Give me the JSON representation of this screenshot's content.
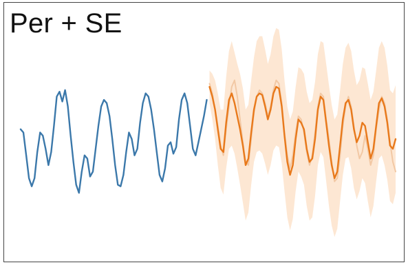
{
  "chart_data": {
    "type": "line",
    "title": "Per + SE",
    "xlabel": "",
    "ylabel": "",
    "grid": false,
    "legend": "none",
    "x_history": [
      0,
      1,
      2,
      3,
      4,
      5,
      6,
      7,
      8,
      9,
      10,
      11,
      12,
      13,
      14,
      15,
      16,
      17,
      18,
      19,
      20,
      21,
      22,
      23,
      24,
      25,
      26,
      27,
      28,
      29,
      30,
      31,
      32,
      33,
      34,
      35,
      36,
      37,
      38,
      39,
      40,
      41,
      42,
      43,
      44,
      45,
      46,
      47,
      48,
      49,
      50,
      51,
      52,
      53,
      54,
      55,
      56,
      57,
      58,
      59,
      60,
      61,
      62,
      63,
      64,
      65,
      66,
      67
    ],
    "x_forecast": [
      68,
      69,
      70,
      71,
      72,
      73,
      74,
      75,
      76,
      77,
      78,
      79,
      80,
      81,
      82,
      83,
      84,
      85,
      86,
      87,
      88,
      89,
      90,
      91,
      92,
      93,
      94,
      95,
      96,
      97,
      98,
      99,
      100,
      101,
      102,
      103,
      104,
      105,
      106,
      107,
      108,
      109,
      110,
      111,
      112,
      113,
      114,
      115,
      116,
      117,
      118,
      119,
      120,
      121,
      122,
      123,
      124,
      125,
      126,
      127,
      128,
      129,
      130,
      131,
      132,
      133,
      134,
      135
    ],
    "ylim": [
      -2.8,
      3.0
    ],
    "series": [
      {
        "role": "history",
        "color": "#3b78aa",
        "values": [
          0.2,
          0.1,
          -0.6,
          -1.3,
          -1.55,
          -1.3,
          -0.5,
          0.1,
          0.0,
          -0.4,
          -0.9,
          -0.5,
          0.3,
          1.2,
          1.35,
          1.05,
          1.4,
          0.9,
          0.0,
          -0.8,
          -1.5,
          -1.75,
          -1.1,
          -0.6,
          -0.7,
          -1.25,
          -1.1,
          -0.4,
          0.3,
          0.9,
          1.1,
          1.0,
          0.6,
          -0.1,
          -0.9,
          -1.5,
          -1.55,
          -1.2,
          -0.5,
          0.1,
          -0.1,
          -0.6,
          -0.4,
          0.4,
          1.0,
          1.3,
          1.2,
          0.8,
          0.2,
          -0.5,
          -1.2,
          -1.4,
          -1.0,
          -0.3,
          -0.2,
          -0.55,
          -0.35,
          0.5,
          1.1,
          1.3,
          1.0,
          0.3,
          -0.4,
          -0.6,
          -0.2,
          0.2,
          0.6,
          1.1
        ]
      },
      {
        "role": "forecast-mean",
        "color": "#e8791b",
        "values": [
          1.5,
          1.2,
          0.8,
          0.2,
          -0.4,
          -0.5,
          0.4,
          1.1,
          1.3,
          1.0,
          0.6,
          0.2,
          -0.3,
          -0.9,
          -0.7,
          0.1,
          0.8,
          1.2,
          1.3,
          1.25,
          0.9,
          0.5,
          0.8,
          1.3,
          1.5,
          1.45,
          0.9,
          0.0,
          -0.8,
          -1.2,
          -0.9,
          -0.1,
          0.5,
          0.4,
          0.2,
          -0.4,
          -0.8,
          -0.7,
          -0.1,
          0.8,
          1.2,
          1.1,
          0.4,
          -0.3,
          -0.9,
          -1.3,
          -1.1,
          -0.3,
          0.5,
          1.0,
          1.1,
          0.8,
          0.2,
          -0.2,
          0.0,
          0.4,
          0.3,
          -0.2,
          -0.7,
          -0.4,
          0.3,
          1.0,
          1.15,
          0.9,
          0.4,
          -0.3,
          -0.4,
          -0.1
        ]
      },
      {
        "role": "actual",
        "color": "#f2c8a4",
        "values": [
          1.6,
          1.3,
          0.8,
          0.3,
          -0.3,
          -0.6,
          0.2,
          0.9,
          1.5,
          1.7,
          1.2,
          0.5,
          -0.2,
          -0.8,
          -0.9,
          -0.1,
          0.7,
          1.2,
          1.4,
          1.3,
          1.0,
          0.6,
          0.9,
          1.4,
          1.7,
          1.6,
          1.0,
          0.1,
          -0.6,
          -1.0,
          -0.6,
          0.1,
          0.6,
          0.5,
          0.1,
          -0.5,
          -0.9,
          -0.6,
          0.1,
          0.9,
          1.3,
          1.2,
          0.5,
          -0.1,
          -0.8,
          -1.4,
          -1.3,
          -0.6,
          0.3,
          0.9,
          1.2,
          0.9,
          0.3,
          -0.3,
          -0.7,
          -0.5,
          0.0,
          -0.4,
          -0.9,
          -0.6,
          0.2,
          0.8,
          1.2,
          1.0,
          0.5,
          -0.2,
          -0.8,
          -1.1
        ]
      }
    ],
    "band": {
      "color": "#fde7d3",
      "halfwidth": [
        0.5,
        0.7,
        0.9,
        1.1,
        1.2,
        1.3,
        1.4,
        1.5,
        1.6,
        1.55,
        1.6,
        1.7,
        1.75,
        1.7,
        1.65,
        1.6,
        1.6,
        1.7,
        1.75,
        1.8,
        1.75,
        1.7,
        1.7,
        1.75,
        1.8,
        1.8,
        1.75,
        1.7,
        1.7,
        1.7,
        1.65,
        1.6,
        1.6,
        1.65,
        1.7,
        1.75,
        1.8,
        1.8,
        1.75,
        1.7,
        1.7,
        1.75,
        1.8,
        1.85,
        1.85,
        1.8,
        1.75,
        1.7,
        1.7,
        1.7,
        1.75,
        1.8,
        1.8,
        1.75,
        1.7,
        1.7,
        1.75,
        1.8,
        1.8,
        1.75,
        1.7,
        1.7,
        1.75,
        1.8,
        1.75,
        1.7,
        1.7,
        1.65
      ]
    }
  }
}
